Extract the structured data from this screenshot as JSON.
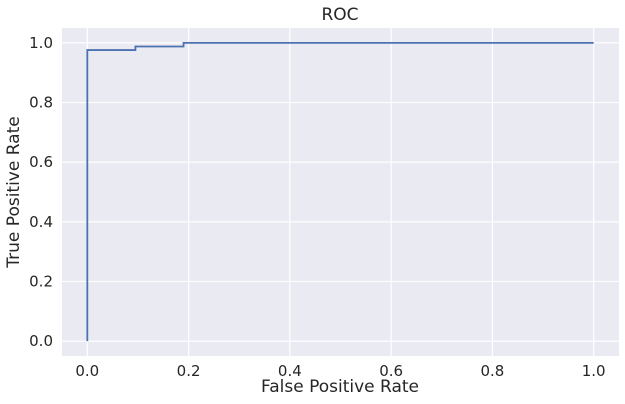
{
  "chart_data": {
    "type": "line",
    "title": "ROC",
    "xlabel": "False Positive Rate",
    "ylabel": "True Positive Rate",
    "xlim": [
      -0.05,
      1.05
    ],
    "ylim": [
      -0.05,
      1.05
    ],
    "x_ticks": [
      "0.0",
      "0.2",
      "0.4",
      "0.6",
      "0.8",
      "1.0"
    ],
    "y_ticks": [
      "0.0",
      "0.2",
      "0.4",
      "0.6",
      "0.8",
      "1.0"
    ],
    "grid": true,
    "step": true,
    "series": [
      {
        "x": [
          0.0,
          0.0,
          0.095,
          0.095,
          0.19,
          0.19,
          1.0
        ],
        "y": [
          0.0,
          0.976,
          0.976,
          0.988,
          0.988,
          1.0,
          1.0
        ]
      }
    ],
    "colors": {
      "background": "#eaeaf2",
      "grid": "#ffffff",
      "line": "#4c72b0"
    }
  }
}
